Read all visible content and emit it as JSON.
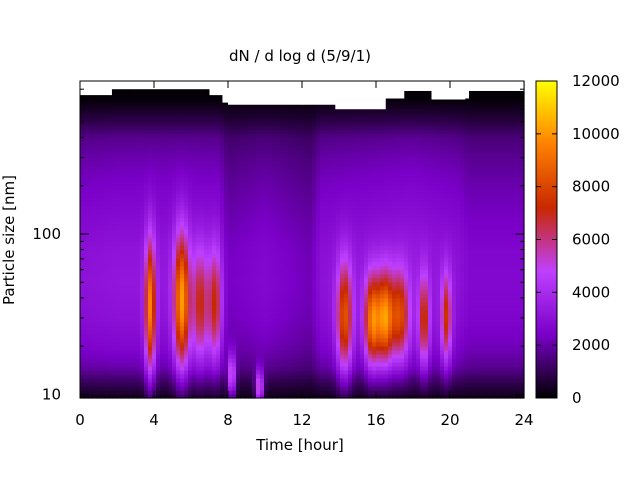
{
  "chart_data": {
    "type": "heatmap",
    "title": "dN / d log d (5/9/1)",
    "xlabel": "Time [hour]",
    "ylabel": "Particle size [nm]",
    "x_ticks": [
      0,
      4,
      8,
      12,
      16,
      20,
      24
    ],
    "x_tick_labels": [
      "0",
      "4",
      "8",
      "12",
      "16",
      "20",
      "24"
    ],
    "xlim": [
      0,
      24
    ],
    "y_scale": "log",
    "y_ticks": [
      10,
      100
    ],
    "y_tick_labels": [
      "10",
      "100"
    ],
    "ylim": [
      9.5,
      900
    ],
    "colorbar": {
      "range": [
        0,
        12000
      ],
      "ticks": [
        0,
        2000,
        4000,
        6000,
        8000,
        10000,
        12000
      ],
      "tick_labels": [
        "0",
        "2000",
        "4000",
        "6000",
        "8000",
        "10000",
        "12000"
      ],
      "palette": "gnuplot",
      "colors": [
        "#000000",
        "#7a00c8",
        "#bf40ff",
        "#c82800",
        "#ff8000",
        "#ffff00"
      ]
    },
    "data_ceiling_nm": [
      {
        "x": 0.0,
        "size": 735
      },
      {
        "x": 1.6,
        "size": 735
      },
      {
        "x": 1.7,
        "size": 800
      },
      {
        "x": 3.0,
        "size": 800
      },
      {
        "x": 6.5,
        "size": 800
      },
      {
        "x": 7.0,
        "size": 735
      },
      {
        "x": 7.7,
        "size": 660
      },
      {
        "x": 8.0,
        "size": 640
      },
      {
        "x": 12.0,
        "size": 640
      },
      {
        "x": 13.8,
        "size": 600
      },
      {
        "x": 16.2,
        "size": 600
      },
      {
        "x": 16.5,
        "size": 700
      },
      {
        "x": 17.5,
        "size": 780
      },
      {
        "x": 19.0,
        "size": 690
      },
      {
        "x": 20.8,
        "size": 700
      },
      {
        "x": 21.0,
        "size": 780
      },
      {
        "x": 24.0,
        "size": 780
      }
    ],
    "background_levels": {
      "size_nm": [
        9.5,
        12,
        15,
        20,
        30,
        50,
        80,
        120,
        200,
        300,
        400,
        500,
        600,
        700
      ],
      "values": [
        300,
        1200,
        2200,
        2800,
        3200,
        3400,
        3300,
        3000,
        2600,
        2200,
        1800,
        1000,
        500,
        100
      ]
    },
    "time_scaling": [
      {
        "x": 0,
        "factor": 0.9
      },
      {
        "x": 2,
        "factor": 0.95
      },
      {
        "x": 7.5,
        "factor": 0.95
      },
      {
        "x": 8,
        "factor": 0.7
      },
      {
        "x": 10,
        "factor": 0.8
      },
      {
        "x": 12.5,
        "factor": 0.65
      },
      {
        "x": 13,
        "factor": 0.9
      },
      {
        "x": 18,
        "factor": 1.0
      },
      {
        "x": 20.5,
        "factor": 0.9
      },
      {
        "x": 21,
        "factor": 0.8
      },
      {
        "x": 24,
        "factor": 0.8
      }
    ],
    "hotspots": [
      {
        "x": 3.8,
        "size": 35,
        "value": 6500,
        "x_width": 0.2,
        "size_width_log": 0.3
      },
      {
        "x": 5.5,
        "size": 38,
        "value": 7000,
        "x_width": 0.3,
        "size_width_log": 0.3
      },
      {
        "x": 6.5,
        "size": 36,
        "value": 4000,
        "x_width": 0.3,
        "size_width_log": 0.25
      },
      {
        "x": 7.3,
        "size": 36,
        "value": 4000,
        "x_width": 0.25,
        "size_width_log": 0.25
      },
      {
        "x": 14.3,
        "size": 30,
        "value": 5500,
        "x_width": 0.3,
        "size_width_log": 0.25
      },
      {
        "x": 15.8,
        "size": 29,
        "value": 6500,
        "x_width": 0.3,
        "size_width_log": 0.2
      },
      {
        "x": 16.5,
        "size": 30,
        "value": 6500,
        "x_width": 0.3,
        "size_width_log": 0.2
      },
      {
        "x": 17.3,
        "size": 31,
        "value": 5000,
        "x_width": 0.35,
        "size_width_log": 0.2
      },
      {
        "x": 18.6,
        "size": 29,
        "value": 4500,
        "x_width": 0.2,
        "size_width_log": 0.2
      },
      {
        "x": 19.8,
        "size": 30,
        "value": 4500,
        "x_width": 0.2,
        "size_width_log": 0.2
      },
      {
        "x": 8.2,
        "size": 13,
        "value": 4500,
        "x_width": 0.15,
        "size_width_log": 0.1
      },
      {
        "x": 9.7,
        "size": 11,
        "value": 5000,
        "x_width": 0.15,
        "size_width_log": 0.08
      }
    ]
  }
}
